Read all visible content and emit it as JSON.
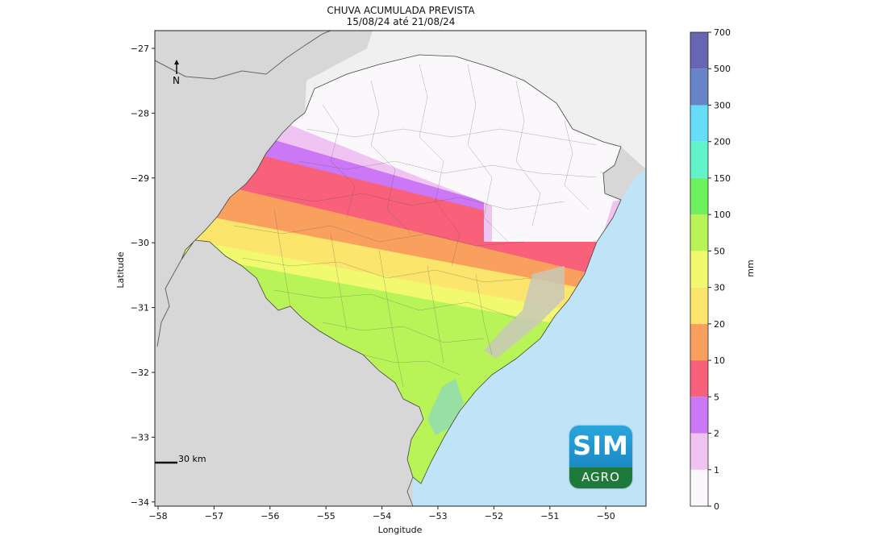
{
  "title": "CHUVA ACUMULADA PREVISTA",
  "subtitle": "15/08/24 até 21/08/24",
  "xlabel": "Longitude",
  "ylabel": "Latitude",
  "x_ticks": [
    "−58",
    "−57",
    "−56",
    "−55",
    "−54",
    "−53",
    "−52",
    "−51",
    "−50"
  ],
  "y_ticks": [
    "−27",
    "−28",
    "−29",
    "−30",
    "−31",
    "−32",
    "−33",
    "−34"
  ],
  "north_label": "N",
  "scale_label": "30 km",
  "colorbar": {
    "unit": "mm",
    "levels": [
      "0",
      "1",
      "2",
      "5",
      "10",
      "20",
      "30",
      "50",
      "100",
      "150",
      "200",
      "300",
      "500",
      "700"
    ],
    "colors": [
      "#fbf8fb",
      "#f0c4f2",
      "#cc77f5",
      "#f9607a",
      "#f9a05e",
      "#fce56c",
      "#f1fa6f",
      "#b8f458",
      "#6df15e",
      "#63f3c8",
      "#66dcf7",
      "#6784c7",
      "#6865b3"
    ]
  },
  "logo": {
    "top": "SIM",
    "bottom": "AGRO"
  },
  "colors": {
    "land_outside": "#d7d7d7",
    "land_light": "#f0f0f0",
    "ocean": "#bfe3f7"
  }
}
